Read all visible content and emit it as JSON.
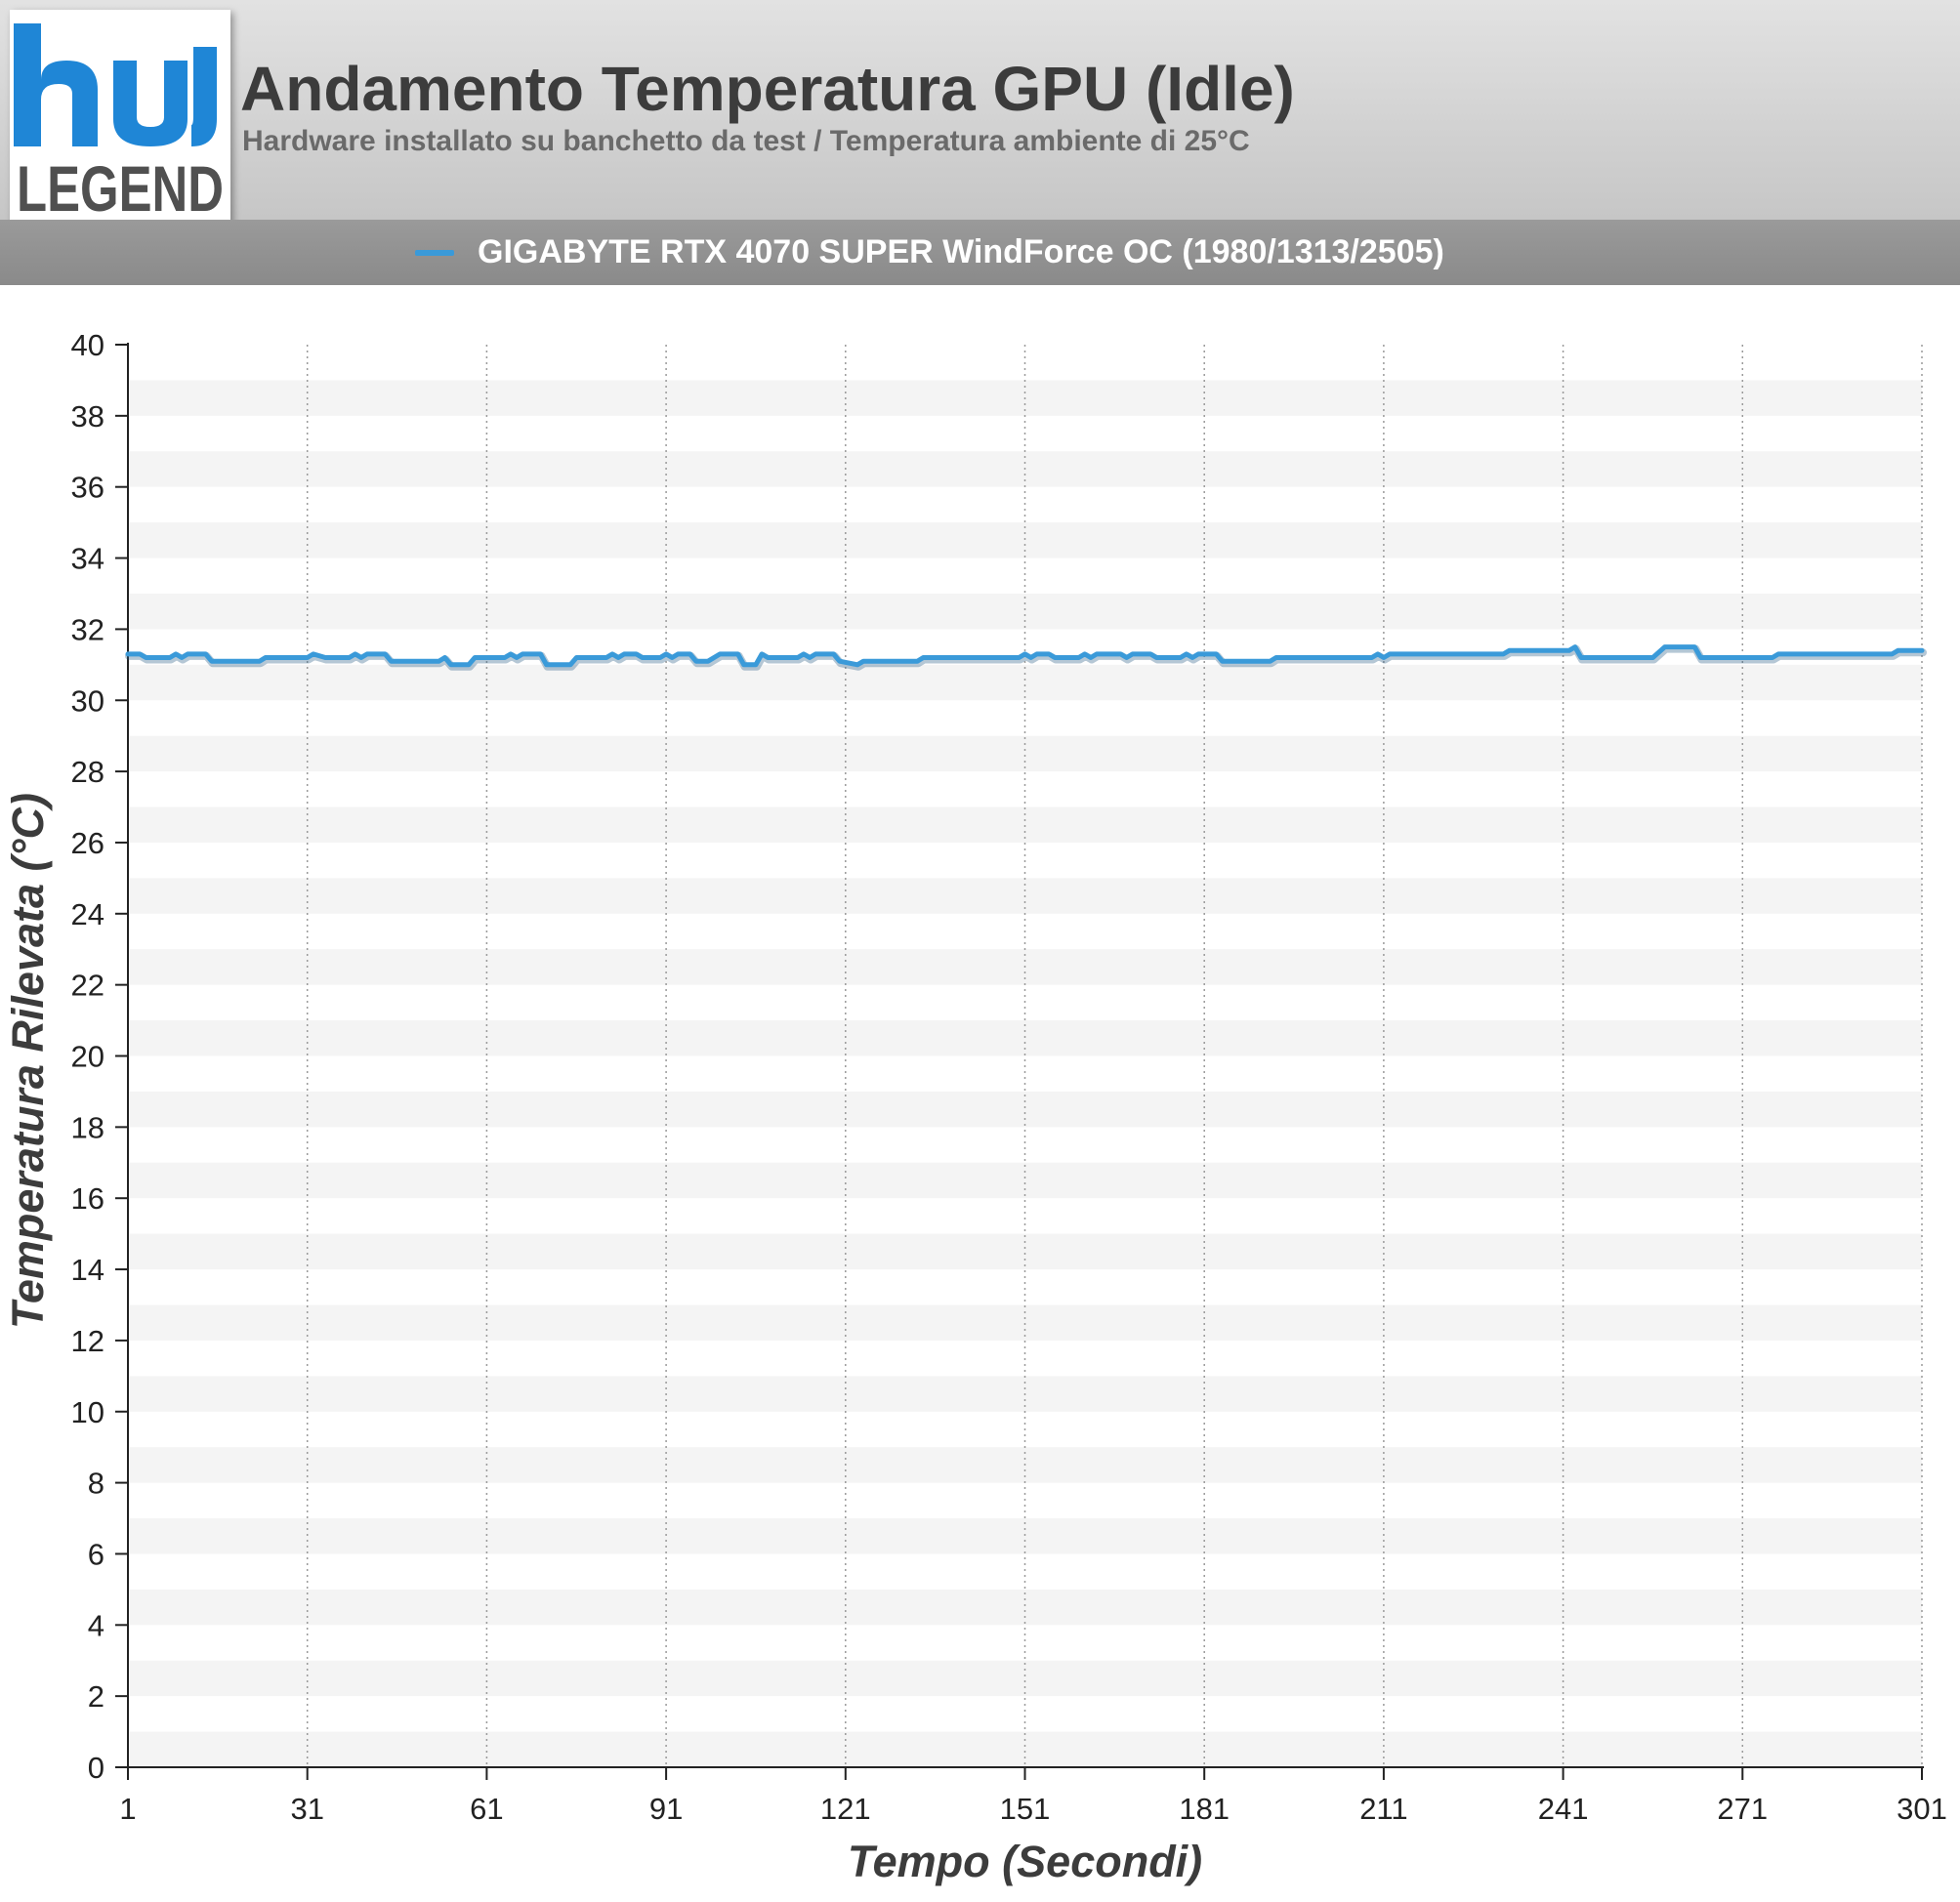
{
  "header": {
    "logo_text": "LEGEND",
    "title": "Andamento Temperatura GPU (Idle)",
    "subtitle": "Hardware installato su banchetto da test / Temperatura ambiente di 25°C"
  },
  "colors": {
    "series": "#3a9ad9",
    "logo_blue": "#1f86d6",
    "logo_gray": "#505050"
  },
  "chart_data": {
    "type": "line",
    "title": "Andamento Temperatura GPU (Idle)",
    "xlabel": "Tempo (Secondi)",
    "ylabel": "Temperatura Rilevata (°C)",
    "xlim": [
      1,
      301
    ],
    "ylim": [
      0,
      40
    ],
    "x_ticks": [
      1,
      31,
      61,
      91,
      121,
      151,
      181,
      211,
      241,
      271,
      301
    ],
    "y_ticks": [
      0,
      2,
      4,
      6,
      8,
      10,
      12,
      14,
      16,
      18,
      20,
      22,
      24,
      26,
      28,
      30,
      32,
      34,
      36,
      38,
      40
    ],
    "grid": {
      "vertical": "dotted",
      "horizontal_bands": true
    },
    "legend_position": "top",
    "series": [
      {
        "name": "GIGABYTE RTX 4070 SUPER WindForce OC (1980/1313/2505)",
        "color": "#3a9ad9",
        "points": [
          [
            1,
            31.3
          ],
          [
            3,
            31.3
          ],
          [
            4,
            31.2
          ],
          [
            8,
            31.2
          ],
          [
            9,
            31.3
          ],
          [
            10,
            31.2
          ],
          [
            11,
            31.3
          ],
          [
            14,
            31.3
          ],
          [
            15,
            31.1
          ],
          [
            23,
            31.1
          ],
          [
            24,
            31.2
          ],
          [
            31,
            31.2
          ],
          [
            32,
            31.3
          ],
          [
            34,
            31.2
          ],
          [
            38,
            31.2
          ],
          [
            39,
            31.3
          ],
          [
            40,
            31.2
          ],
          [
            41,
            31.3
          ],
          [
            44,
            31.3
          ],
          [
            45,
            31.1
          ],
          [
            53,
            31.1
          ],
          [
            54,
            31.2
          ],
          [
            55,
            31.0
          ],
          [
            58,
            31.0
          ],
          [
            59,
            31.2
          ],
          [
            64,
            31.2
          ],
          [
            65,
            31.3
          ],
          [
            66,
            31.2
          ],
          [
            67,
            31.3
          ],
          [
            70,
            31.3
          ],
          [
            71,
            31.0
          ],
          [
            75,
            31.0
          ],
          [
            76,
            31.2
          ],
          [
            81,
            31.2
          ],
          [
            82,
            31.3
          ],
          [
            83,
            31.2
          ],
          [
            84,
            31.3
          ],
          [
            86,
            31.3
          ],
          [
            87,
            31.2
          ],
          [
            90,
            31.2
          ],
          [
            91,
            31.3
          ],
          [
            92,
            31.2
          ],
          [
            93,
            31.3
          ],
          [
            95,
            31.3
          ],
          [
            96,
            31.1
          ],
          [
            98,
            31.1
          ],
          [
            100,
            31.3
          ],
          [
            103,
            31.3
          ],
          [
            104,
            31.0
          ],
          [
            106,
            31.0
          ],
          [
            107,
            31.3
          ],
          [
            108,
            31.2
          ],
          [
            113,
            31.2
          ],
          [
            114,
            31.3
          ],
          [
            115,
            31.2
          ],
          [
            116,
            31.3
          ],
          [
            119,
            31.3
          ],
          [
            120,
            31.1
          ],
          [
            123,
            31.0
          ],
          [
            124,
            31.1
          ],
          [
            133,
            31.1
          ],
          [
            134,
            31.2
          ],
          [
            150,
            31.2
          ],
          [
            151,
            31.3
          ],
          [
            152,
            31.2
          ],
          [
            153,
            31.3
          ],
          [
            155,
            31.3
          ],
          [
            156,
            31.2
          ],
          [
            160,
            31.2
          ],
          [
            161,
            31.3
          ],
          [
            162,
            31.2
          ],
          [
            163,
            31.3
          ],
          [
            167,
            31.3
          ],
          [
            168,
            31.2
          ],
          [
            169,
            31.3
          ],
          [
            172,
            31.3
          ],
          [
            173,
            31.2
          ],
          [
            177,
            31.2
          ],
          [
            178,
            31.3
          ],
          [
            179,
            31.2
          ],
          [
            180,
            31.3
          ],
          [
            183,
            31.3
          ],
          [
            184,
            31.1
          ],
          [
            192,
            31.1
          ],
          [
            193,
            31.2
          ],
          [
            209,
            31.2
          ],
          [
            210,
            31.3
          ],
          [
            211,
            31.2
          ],
          [
            212,
            31.3
          ],
          [
            231,
            31.3
          ],
          [
            232,
            31.4
          ],
          [
            242,
            31.4
          ],
          [
            243,
            31.5
          ],
          [
            244,
            31.2
          ],
          [
            256,
            31.2
          ],
          [
            258,
            31.5
          ],
          [
            263,
            31.5
          ],
          [
            264,
            31.2
          ],
          [
            276,
            31.2
          ],
          [
            277,
            31.3
          ],
          [
            296,
            31.3
          ],
          [
            297,
            31.4
          ],
          [
            301,
            31.4
          ]
        ]
      }
    ]
  }
}
